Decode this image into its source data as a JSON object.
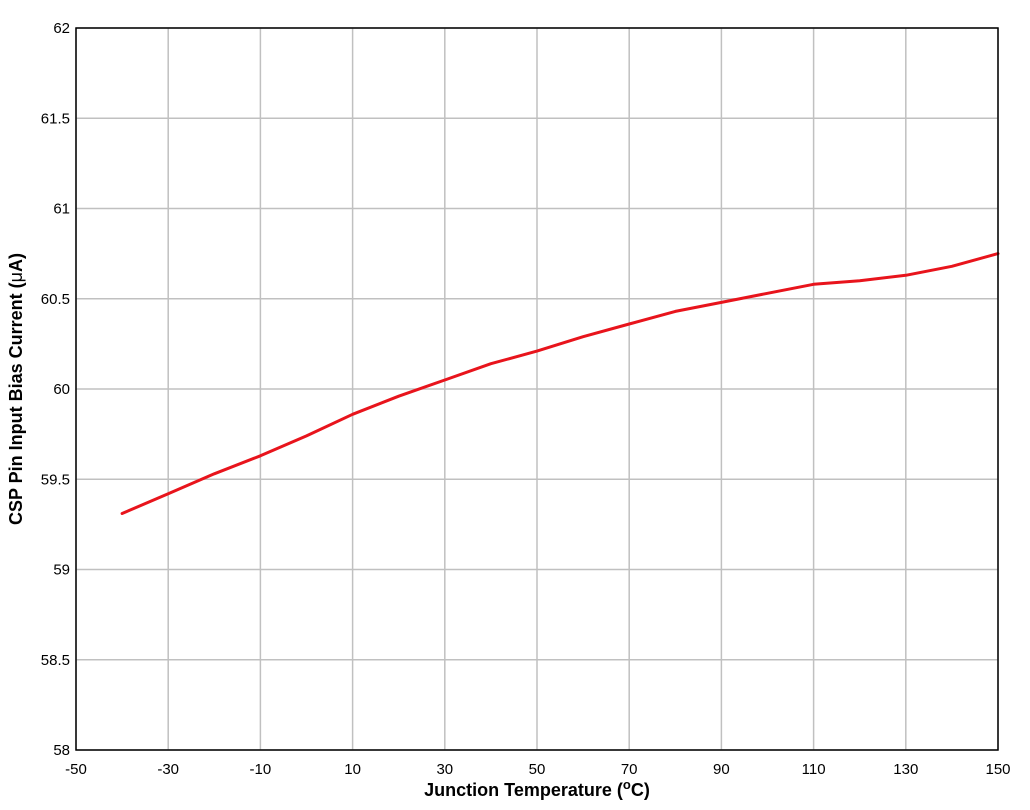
{
  "chart_data": {
    "type": "line",
    "title": "",
    "xlabel": "Junction Temperature (",
    "xlabel_sup": "o",
    "xlabel_suffix": "C)",
    "ylabel": "CSP Pin Input Bias Current (",
    "ylabel_mu": "μ",
    "ylabel_suffix": "A)",
    "xlim": [
      -50,
      150
    ],
    "ylim": [
      58,
      62
    ],
    "xticks": [
      "-50",
      "-30",
      "-10",
      "10",
      "30",
      "50",
      "70",
      "90",
      "110",
      "130",
      "150"
    ],
    "yticks": [
      "58",
      "58.5",
      "59",
      "59.5",
      "60",
      "60.5",
      "61",
      "61.5",
      "62"
    ],
    "grid": true,
    "legend": "none",
    "series": [
      {
        "color": "#e8141c",
        "x": [
          -40,
          -30,
          -20,
          -10,
          0,
          10,
          20,
          30,
          40,
          50,
          60,
          70,
          80,
          90,
          100,
          110,
          120,
          130,
          140,
          150
        ],
        "y": [
          59.31,
          59.42,
          59.53,
          59.63,
          59.74,
          59.86,
          59.96,
          60.05,
          60.14,
          60.21,
          60.29,
          60.36,
          60.43,
          60.48,
          60.53,
          60.58,
          60.6,
          60.63,
          60.68,
          60.75
        ]
      }
    ]
  }
}
